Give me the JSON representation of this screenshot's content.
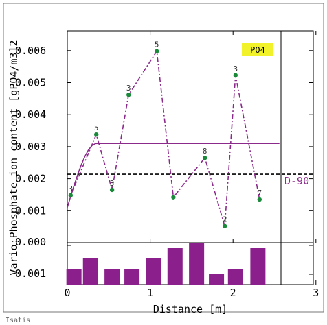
{
  "chart_data": {
    "type": "line",
    "title": "",
    "xlabel": "Distance [m]",
    "ylabel": "Vario:Phosphate ion content [gPO4/m3]2",
    "xlim": [
      0,
      3
    ],
    "ylim": [
      0.0,
      0.0067
    ],
    "x_ticks": [
      "0",
      "1",
      "2",
      "3"
    ],
    "y_ticks": [
      {
        "value": 0.001,
        "label": "0.001"
      },
      {
        "value": 0.002,
        "label": "0.002"
      },
      {
        "value": 0.003,
        "label": "0.003"
      },
      {
        "value": 0.004,
        "label": "0.004"
      },
      {
        "value": 0.005,
        "label": "0.005"
      },
      {
        "value": 0.006,
        "label": "0.006"
      }
    ],
    "lower_tick_labels": [
      "0.000",
      "0.001"
    ],
    "experimental_variogram": {
      "name": "PO4",
      "color": "#8b2a8b",
      "marker_color": "#1a8a3a",
      "x": [
        0.04,
        0.35,
        0.54,
        0.74,
        1.08,
        1.28,
        1.66,
        1.9,
        2.03,
        2.32
      ],
      "y": [
        0.00148,
        0.00338,
        0.00165,
        0.00462,
        0.00598,
        0.00142,
        0.00265,
        0.00052,
        0.00523,
        0.00135
      ],
      "pair_counts": [
        "3",
        "5",
        "3",
        "3",
        "5",
        "",
        "8",
        "2",
        "3",
        "7"
      ]
    },
    "model_variogram": {
      "color": "#8b2a8b",
      "nugget": 0.0011,
      "sill": 0.0031,
      "range": 0.35,
      "x_max": 2.56
    },
    "variance_line": {
      "label": "D-90",
      "value": 0.00214,
      "color": "#000000"
    },
    "histogram": {
      "color": "#8b1f8b",
      "x": [
        0.08,
        0.28,
        0.54,
        0.78,
        1.04,
        1.3,
        1.56,
        1.8,
        2.03,
        2.3
      ],
      "counts": [
        3,
        5,
        3,
        3,
        5,
        7,
        8,
        2,
        3,
        7
      ]
    },
    "legend": {
      "label": "PO4",
      "placement": "top-right",
      "background": "#f2f22a"
    },
    "footer_text": "Isatis"
  }
}
